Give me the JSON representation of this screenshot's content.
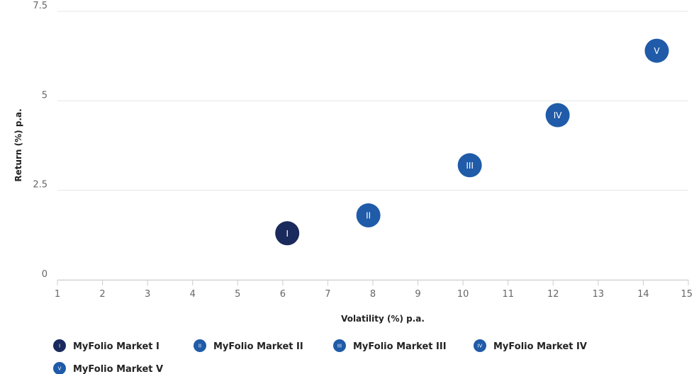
{
  "chart_data": {
    "type": "scatter",
    "xlabel": "Volatility (%) p.a.",
    "ylabel": "Return (%) p.a.",
    "xlim": [
      1,
      15
    ],
    "ylim": [
      0,
      7.5
    ],
    "x_ticks": [
      "1",
      "2",
      "3",
      "4",
      "5",
      "6",
      "7",
      "8",
      "9",
      "10",
      "11",
      "12",
      "13",
      "14",
      "15"
    ],
    "y_ticks": [
      "0",
      "2.5",
      "5",
      "7.5"
    ],
    "grid": "horizontal",
    "legend_position": "bottom",
    "series": [
      {
        "name": "MyFolio Market I",
        "marker": "I",
        "color": "#1b2a5c",
        "x": 6.1,
        "y": 1.3
      },
      {
        "name": "MyFolio Market II",
        "marker": "II",
        "color": "#1f5ba8",
        "x": 7.9,
        "y": 1.8
      },
      {
        "name": "MyFolio Market III",
        "marker": "III",
        "color": "#1f5ba8",
        "x": 10.15,
        "y": 3.2
      },
      {
        "name": "MyFolio Market IV",
        "marker": "IV",
        "color": "#1f5ba8",
        "x": 12.1,
        "y": 4.6
      },
      {
        "name": "MyFolio Market V",
        "marker": "V",
        "color": "#1f5ba8",
        "x": 14.3,
        "y": 6.4
      }
    ]
  }
}
